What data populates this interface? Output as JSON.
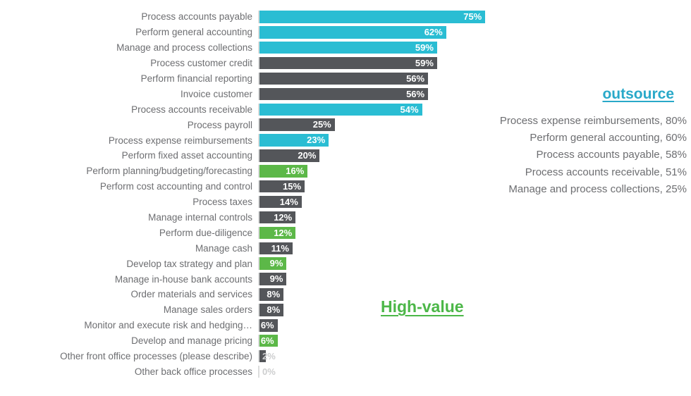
{
  "chart_data": {
    "type": "bar",
    "orientation": "horizontal",
    "title": "",
    "xlabel": "",
    "ylabel": "",
    "value_suffix": "%",
    "xlim": [
      0,
      80
    ],
    "grid": false,
    "legend": false,
    "bars": [
      {
        "label": "Process accounts payable",
        "value": 75,
        "color": "teal"
      },
      {
        "label": "Perform general accounting",
        "value": 62,
        "color": "teal"
      },
      {
        "label": "Manage and process collections",
        "value": 59,
        "color": "teal"
      },
      {
        "label": "Process customer credit",
        "value": 59,
        "color": "gray"
      },
      {
        "label": "Perform financial reporting",
        "value": 56,
        "color": "gray"
      },
      {
        "label": "Invoice customer",
        "value": 56,
        "color": "gray"
      },
      {
        "label": "Process accounts receivable",
        "value": 54,
        "color": "teal"
      },
      {
        "label": "Process payroll",
        "value": 25,
        "color": "gray"
      },
      {
        "label": "Process expense reimbursements",
        "value": 23,
        "color": "teal"
      },
      {
        "label": "Perform fixed asset accounting",
        "value": 20,
        "color": "gray"
      },
      {
        "label": "Perform planning/budgeting/forecasting",
        "value": 16,
        "color": "green"
      },
      {
        "label": "Perform cost accounting and control",
        "value": 15,
        "color": "gray"
      },
      {
        "label": "Process taxes",
        "value": 14,
        "color": "gray"
      },
      {
        "label": "Manage internal controls",
        "value": 12,
        "color": "gray"
      },
      {
        "label": "Perform due-diligence",
        "value": 12,
        "color": "green"
      },
      {
        "label": "Manage cash",
        "value": 11,
        "color": "gray"
      },
      {
        "label": "Develop tax strategy and plan",
        "value": 9,
        "color": "green"
      },
      {
        "label": "Manage in-house bank accounts",
        "value": 9,
        "color": "gray"
      },
      {
        "label": "Order materials and services",
        "value": 8,
        "color": "gray"
      },
      {
        "label": "Manage sales orders",
        "value": 8,
        "color": "gray"
      },
      {
        "label": "Monitor and execute risk and hedging…",
        "value": 6,
        "color": "gray"
      },
      {
        "label": "Develop and manage pricing",
        "value": 6,
        "color": "green"
      },
      {
        "label": "Other front office processes (please describe)",
        "value": 2,
        "color": "gray"
      },
      {
        "label": "Other back office processes",
        "value": 0,
        "color": "gray"
      }
    ]
  },
  "outsource_panel": {
    "heading": "outsource",
    "items": [
      "Process expense reimbursements, 80%",
      "Perform general accounting, 60%",
      "Process accounts payable, 58%",
      "Process accounts receivable, 51%",
      "Manage and process collections, 25%"
    ]
  },
  "high_value": {
    "label": "High-value"
  },
  "colors": {
    "teal": "#2abdd3",
    "gray": "#54565a",
    "green": "#5cb848",
    "teal_text": "#29a9c9",
    "green_text": "#4cb748",
    "category_text": "#6d6e71",
    "faint_value_text": "#cdcecf",
    "axis_line": "#dcdddd",
    "value_text": "#ffffff"
  }
}
